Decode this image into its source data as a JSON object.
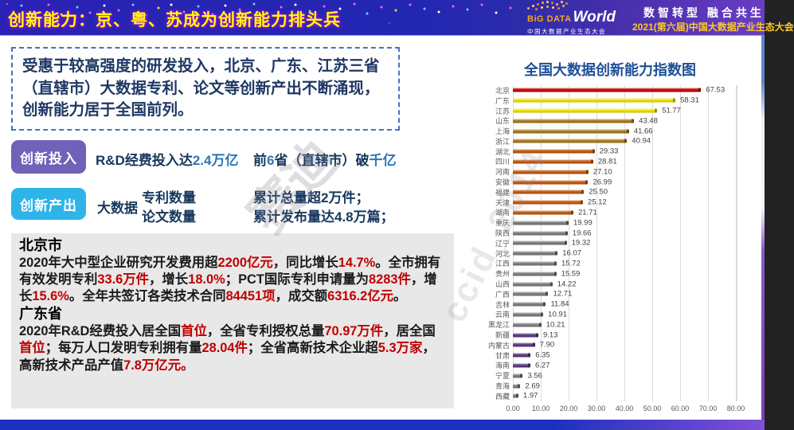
{
  "header": {
    "title": "创新能力：京、粤、苏成为创新能力排头兵",
    "logo": {
      "big": "BiG DATA",
      "world": "World",
      "sub": "中国大数据产业生态大会"
    },
    "slogan": "数智转型 融合共生",
    "event": "2021(第六届)中国大数据产业生态大会"
  },
  "insight": "受惠于较高强度的研发投入，北京、广东、江苏三省（直辖市）大数据专利、论文等创新产出不断涌现，创新能力居于全国前列。",
  "investment": {
    "badge": "创新投入",
    "text1": [
      {
        "t": "R&D经费投入达"
      },
      {
        "t": "2.4万亿",
        "c": "blue"
      }
    ],
    "text2": [
      {
        "t": "前"
      },
      {
        "t": "6",
        "c": "blue"
      },
      {
        "t": "省（直辖市）破"
      },
      {
        "t": "千亿",
        "c": "blue"
      }
    ]
  },
  "output": {
    "badge": "创新产出",
    "prefix": "大数据",
    "items": [
      "专利数量",
      "论文数量"
    ],
    "results": [
      "累计总量超2万件；",
      "累计发布量达4.8万篇；"
    ]
  },
  "details": {
    "beijing": {
      "title": "北京市",
      "segments": [
        {
          "t": "2020年大中型企业研究开发费用超"
        },
        {
          "t": "2200亿元",
          "c": "red"
        },
        {
          "t": "，同比增长"
        },
        {
          "t": "14.7%",
          "c": "red"
        },
        {
          "t": "。全市拥有有效发明专利"
        },
        {
          "t": "33.6万件",
          "c": "red"
        },
        {
          "t": "，增长"
        },
        {
          "t": "18.0%",
          "c": "red"
        },
        {
          "t": "；PCT国际专利申请量为"
        },
        {
          "t": "8283件",
          "c": "red"
        },
        {
          "t": "，增长"
        },
        {
          "t": "15.6%",
          "c": "red"
        },
        {
          "t": "。全年共签订各类技术合同"
        },
        {
          "t": "84451项",
          "c": "red"
        },
        {
          "t": "，成交额"
        },
        {
          "t": "6316.2亿元",
          "c": "red"
        },
        {
          "t": "。"
        }
      ]
    },
    "guangdong": {
      "title": "广东省",
      "segments": [
        {
          "t": "2020年R&D经费投入居全国"
        },
        {
          "t": "首位",
          "c": "red"
        },
        {
          "t": "，全省专利授权总量"
        },
        {
          "t": "70.97万件",
          "c": "red"
        },
        {
          "t": "，居全国"
        },
        {
          "t": "首位",
          "c": "red"
        },
        {
          "t": "；每万人口发明专利拥有量"
        },
        {
          "t": "28.04件",
          "c": "red"
        },
        {
          "t": "；全省高新技术企业超"
        },
        {
          "t": "5.3万家",
          "c": "red"
        },
        {
          "t": "，高新技术产品产值"
        },
        {
          "t": "7.8万亿元。",
          "c": "red"
        }
      ]
    }
  },
  "watermarks": {
    "wm1": "赛迪",
    "wm2": "ccid_2014"
  },
  "colors": {
    "header_title": "#FFFF00",
    "accent_blue": "#2E75B6",
    "accent_red": "#C00000",
    "badge_purple": "#6F62B8",
    "badge_cyan": "#2FB4EA",
    "chart_title_blue": "#1D4F96"
  },
  "chart_data": {
    "type": "bar",
    "orientation": "horizontal",
    "title": "全国大数据创新能力指数图",
    "xlabel": "",
    "ylabel": "",
    "xlim": [
      0,
      80
    ],
    "grid": true,
    "x_ticks": [
      "0.00",
      "10.00",
      "20.00",
      "30.00",
      "40.00",
      "50.00",
      "60.00",
      "70.00",
      "80.00"
    ],
    "colors": {
      "red": {
        "main": "#CE0000",
        "cap": "#7E0000"
      },
      "yellow": {
        "main": "#EFE400",
        "cap": "#9E9200"
      },
      "gold": {
        "main": "#A97C1F",
        "cap": "#6E4F0F"
      },
      "orange": {
        "main": "#C55A11",
        "cap": "#7E3A0A"
      },
      "gray": {
        "main": "#7F7F7F",
        "cap": "#4A4A4A"
      },
      "purple": {
        "main": "#5C3B85",
        "cap": "#3A2358"
      }
    },
    "provinces": [
      {
        "name": "北京",
        "value": "67.53",
        "color": "red"
      },
      {
        "name": "广东",
        "value": "58.31",
        "color": "yellow"
      },
      {
        "name": "江苏",
        "value": "51.77",
        "color": "yellow"
      },
      {
        "name": "山东",
        "value": "43.48",
        "color": "gold"
      },
      {
        "name": "上海",
        "value": "41.66",
        "color": "gold"
      },
      {
        "name": "浙江",
        "value": "40.94",
        "color": "gold"
      },
      {
        "name": "湖北",
        "value": "29.33",
        "color": "orange"
      },
      {
        "name": "四川",
        "value": "28.81",
        "color": "orange"
      },
      {
        "name": "河南",
        "value": "27.10",
        "color": "orange"
      },
      {
        "name": "安徽",
        "value": "26.99",
        "color": "orange"
      },
      {
        "name": "福建",
        "value": "25.50",
        "color": "orange"
      },
      {
        "name": "天津",
        "value": "25.12",
        "color": "orange"
      },
      {
        "name": "湖南",
        "value": "21.71",
        "color": "orange"
      },
      {
        "name": "重庆",
        "value": "19.99",
        "color": "gray"
      },
      {
        "name": "陕西",
        "value": "19.66",
        "color": "gray"
      },
      {
        "name": "辽宁",
        "value": "19.32",
        "color": "gray"
      },
      {
        "name": "河北",
        "value": "16.07",
        "color": "gray"
      },
      {
        "name": "江西",
        "value": "15.72",
        "color": "gray"
      },
      {
        "name": "贵州",
        "value": "15.59",
        "color": "gray"
      },
      {
        "name": "山西",
        "value": "14.22",
        "color": "gray"
      },
      {
        "name": "广西",
        "value": "12.71",
        "color": "gray"
      },
      {
        "name": "吉林",
        "value": "11.84",
        "color": "gray"
      },
      {
        "name": "云南",
        "value": "10.91",
        "color": "gray"
      },
      {
        "name": "黑龙江",
        "value": "10.21",
        "color": "gray"
      },
      {
        "name": "新疆",
        "value": "9.13",
        "color": "purple"
      },
      {
        "name": "内蒙古",
        "value": "7.90",
        "color": "purple"
      },
      {
        "name": "甘肃",
        "value": "6.35",
        "color": "purple"
      },
      {
        "name": "海南",
        "value": "6.27",
        "color": "purple"
      },
      {
        "name": "宁夏",
        "value": "3.56",
        "color": "gray"
      },
      {
        "name": "青海",
        "value": "2.69",
        "color": "gray"
      },
      {
        "name": "西藏",
        "value": "1.97",
        "color": "gray"
      }
    ]
  }
}
